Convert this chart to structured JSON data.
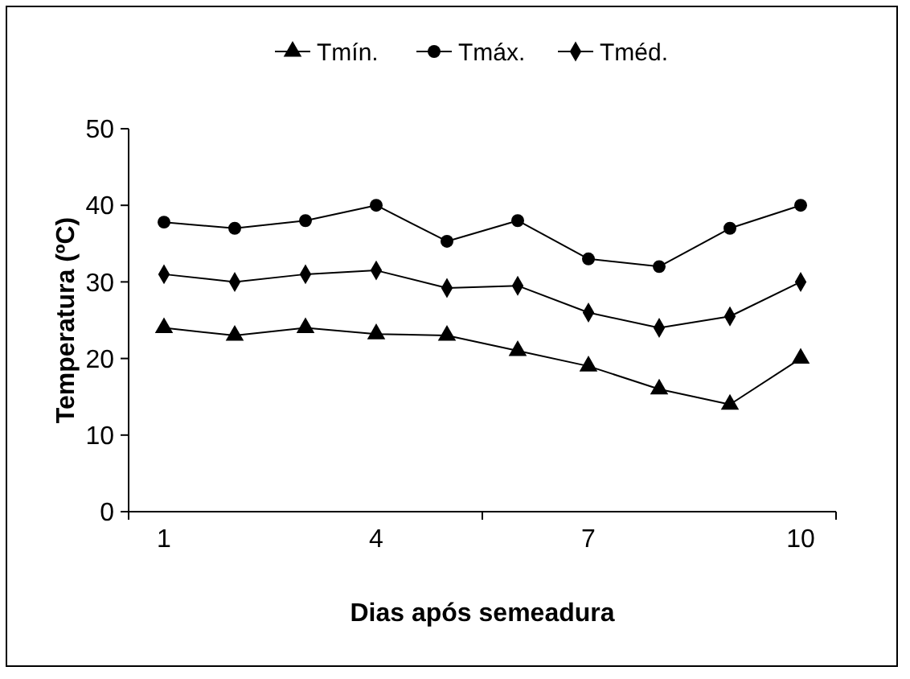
{
  "chart_data": {
    "type": "line",
    "xlabel": "Dias após semeadura",
    "ylabel": "Temperatura (ºC)",
    "categories": [
      "1",
      null,
      null,
      "4",
      null,
      null,
      "7",
      null,
      null,
      "10"
    ],
    "ylim": [
      0,
      50
    ],
    "yticks": [
      0,
      10,
      20,
      30,
      40,
      50
    ],
    "grid": false,
    "legend": "top",
    "series": [
      {
        "name": "Tmín.",
        "color": "#000000",
        "marker": "triangle",
        "values": [
          24,
          23,
          24,
          23.2,
          23,
          21,
          19,
          16,
          14,
          20
        ]
      },
      {
        "name": "Tmáx.",
        "color": "#000000",
        "marker": "circle",
        "values": [
          37.8,
          37,
          38,
          40,
          35.3,
          38,
          33,
          32,
          37,
          40
        ]
      },
      {
        "name": "Tméd.",
        "color": "#000000",
        "marker": "diamond",
        "values": [
          31,
          30,
          31,
          31.5,
          29.2,
          29.5,
          26,
          24,
          25.5,
          30
        ]
      }
    ]
  }
}
